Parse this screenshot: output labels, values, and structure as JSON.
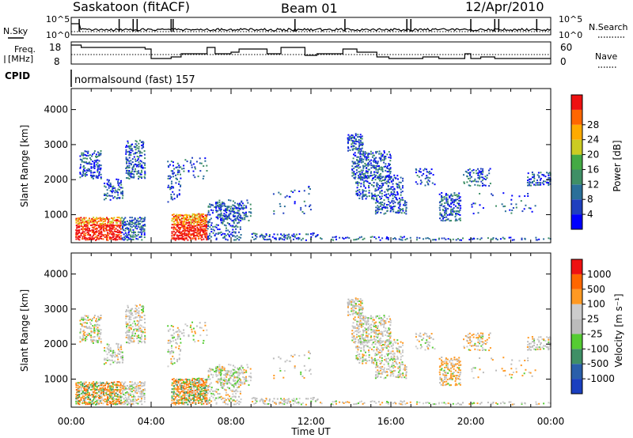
{
  "header": {
    "station": "Saskatoon (fitACF)",
    "beam": "Beam 01",
    "date": "12/Apr/2010"
  },
  "nsky_panel": {
    "left_label": "N.Sky",
    "right_label": "N.Search",
    "left_ticks": [
      "10^5",
      "10^0"
    ],
    "right_ticks": [
      "10^5",
      "10^0"
    ]
  },
  "freq_panel": {
    "left_label_1": "Freq.",
    "left_label_2": "[MHz]",
    "right_label": "Nave",
    "left_ticks": [
      "18",
      "8"
    ],
    "right_ticks": [
      "60",
      "0"
    ]
  },
  "cpid": {
    "label": "CPID",
    "value": "normalsound (fast) 157"
  },
  "colors": {
    "power": [
      "#0000ff",
      "#1f3fbf",
      "#2a6f99",
      "#3f8f66",
      "#44aa44",
      "#cccc22",
      "#ffaa00",
      "#ff6600",
      "#ee1111"
    ],
    "velocity": [
      "#ee1111",
      "#ff6600",
      "#ff9922",
      "#cccccc",
      "#bbbbbb",
      "#55cc33",
      "#3f8f66",
      "#2a5faa",
      "#1a3fbf"
    ]
  },
  "chart_data": [
    {
      "type": "heatmap",
      "name": "power",
      "ylabel": "Slant Range [km]",
      "xlabel": "",
      "yticks": [
        1000,
        2000,
        3000,
        4000
      ],
      "ylim": [
        200,
        4600
      ],
      "xticks": [
        "00:00",
        "04:00",
        "08:00",
        "12:00",
        "16:00",
        "20:00",
        "00:00"
      ],
      "xlim_hours": [
        0,
        24
      ],
      "colorbar": {
        "label": "Power [dB]",
        "ticks": [
          "4",
          "8",
          "12",
          "16",
          "20",
          "24",
          "28"
        ]
      }
    },
    {
      "type": "heatmap",
      "name": "velocity",
      "ylabel": "Slant Range [km]",
      "xlabel": "Time UT",
      "yticks": [
        1000,
        2000,
        3000,
        4000
      ],
      "ylim": [
        200,
        4600
      ],
      "xticks": [
        "00:00",
        "04:00",
        "08:00",
        "12:00",
        "16:00",
        "20:00",
        "00:00"
      ],
      "xlim_hours": [
        0,
        24
      ],
      "colorbar": {
        "label": "Velocity [m s⁻¹]",
        "ticks": [
          "1000",
          "500",
          "100",
          "25",
          "-25",
          "-100",
          "-500",
          "-1000"
        ]
      }
    }
  ]
}
